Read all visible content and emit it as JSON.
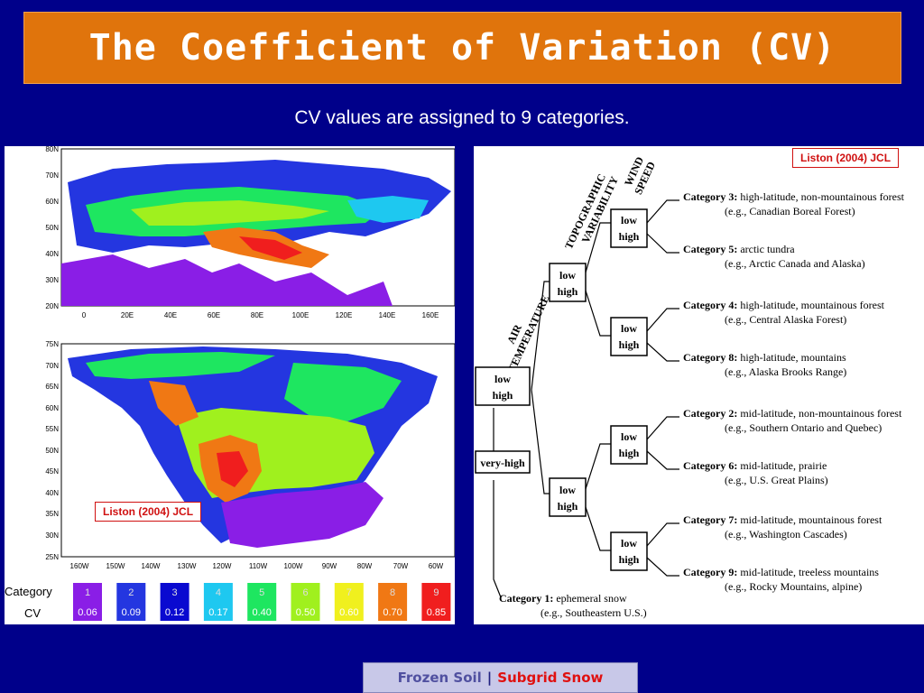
{
  "title": "The Coefficient of Variation (CV)",
  "subtitle": "CV values are assigned to 9 categories.",
  "citation": "Liston (2004) JCL",
  "eurasia_map": {
    "lat_labels": [
      "80N",
      "70N",
      "60N",
      "50N",
      "40N",
      "30N",
      "20N"
    ],
    "lon_labels": [
      "0",
      "20E",
      "40E",
      "60E",
      "80E",
      "100E",
      "120E",
      "140E",
      "160E"
    ]
  },
  "na_map": {
    "lat_labels": [
      "75N",
      "70N",
      "65N",
      "60N",
      "55N",
      "50N",
      "45N",
      "40N",
      "35N",
      "30N",
      "25N"
    ],
    "lon_labels": [
      "160W",
      "150W",
      "140W",
      "130W",
      "120W",
      "110W",
      "100W",
      "90W",
      "80W",
      "70W",
      "60W"
    ]
  },
  "legend": {
    "category_label": "Category",
    "cv_label": "CV",
    "items": [
      {
        "cat": "1",
        "cv": "0.06",
        "color": "#8a1ee6"
      },
      {
        "cat": "2",
        "cv": "0.09",
        "color": "#2436e0"
      },
      {
        "cat": "3",
        "cv": "0.12",
        "color": "#0a0ad0"
      },
      {
        "cat": "4",
        "cv": "0.17",
        "color": "#1ec8f0"
      },
      {
        "cat": "5",
        "cv": "0.40",
        "color": "#1ee660"
      },
      {
        "cat": "6",
        "cv": "0.50",
        "color": "#a0f01e"
      },
      {
        "cat": "7",
        "cv": "0.60",
        "color": "#f0f01e"
      },
      {
        "cat": "8",
        "cv": "0.70",
        "color": "#f07814"
      },
      {
        "cat": "9",
        "cv": "0.85",
        "color": "#f01e1e"
      }
    ]
  },
  "tree": {
    "axis_air": "AIR TEMPERATURE",
    "axis_topo": "TOPOGRAPHIC VARIABILITY",
    "axis_wind": "WIND SPEED",
    "low": "low",
    "high": "high",
    "very_high": "very-high",
    "categories": [
      {
        "name": "Category 3:",
        "desc": "high-latitude, non-mountainous forest",
        "example": "(e.g., Canadian Boreal Forest)"
      },
      {
        "name": "Category 5:",
        "desc": "arctic tundra",
        "example": "(e.g., Arctic Canada and Alaska)"
      },
      {
        "name": "Category 4:",
        "desc": "high-latitude, mountainous forest",
        "example": "(e.g., Central Alaska Forest)"
      },
      {
        "name": "Category 8:",
        "desc": "high-latitude, mountains",
        "example": "(e.g., Alaska Brooks Range)"
      },
      {
        "name": "Category 2:",
        "desc": "mid-latitude, non-mountainous forest",
        "example": "(e.g., Southern Ontario and Quebec)"
      },
      {
        "name": "Category 6:",
        "desc": "mid-latitude, prairie",
        "example": "(e.g., U.S. Great Plains)"
      },
      {
        "name": "Category 7:",
        "desc": "mid-latitude, mountainous forest",
        "example": "(e.g., Washington Cascades)"
      },
      {
        "name": "Category 9:",
        "desc": "mid-latitude, treeless mountains",
        "example": "(e.g., Rocky Mountains, alpine)"
      },
      {
        "name": "Category 1:",
        "desc": "ephemeral snow",
        "example": "(e.g., Southeastern U.S.)"
      }
    ]
  },
  "footer": {
    "left": "Frozen Soil",
    "sep": "|",
    "right": "Subgrid Snow"
  }
}
